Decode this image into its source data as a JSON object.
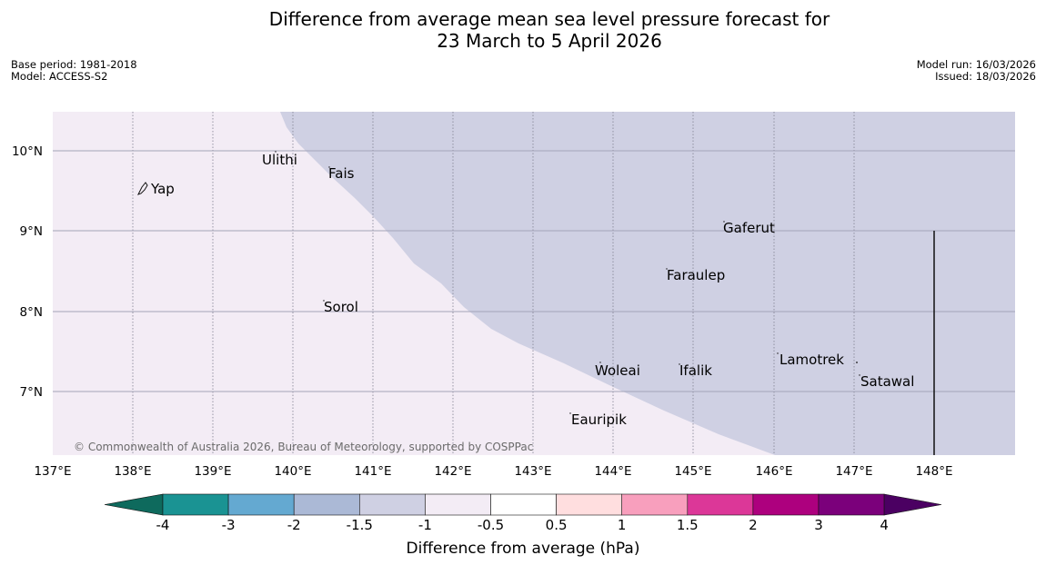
{
  "title": {
    "line1": "Difference from average mean sea level pressure forecast for",
    "line2": "23 March to 5 April 2026"
  },
  "meta": {
    "base_period": "Base period: 1981-2018",
    "model": "Model: ACCESS-S2",
    "model_run": "Model run: 16/03/2026",
    "issued": "Issued: 18/03/2026"
  },
  "map": {
    "lon_labels": [
      "137°E",
      "138°E",
      "139°E",
      "140°E",
      "141°E",
      "142°E",
      "143°E",
      "144°E",
      "145°E",
      "146°E",
      "147°E",
      "148°E"
    ],
    "lat_labels": [
      "10°N",
      "9°N",
      "8°N",
      "7°N"
    ],
    "colors": {
      "fill_low": "#cfd0e3",
      "fill_mid": "#f3ecf5",
      "grid": "#9a9a9a"
    },
    "places": [
      {
        "name": "Yap"
      },
      {
        "name": "Ulithi"
      },
      {
        "name": "Fais"
      },
      {
        "name": "Gaferut"
      },
      {
        "name": "Faraulep"
      },
      {
        "name": "Sorol"
      },
      {
        "name": "Woleai"
      },
      {
        "name": "Ifalik"
      },
      {
        "name": "Lamotrek"
      },
      {
        "name": "Satawal"
      },
      {
        "name": "Eauripik"
      }
    ],
    "copyright": "© Commonwealth of Australia 2026, Bureau of Meteorology, supported by COSPPac"
  },
  "colorbar": {
    "colors": [
      "#0e6a5d",
      "#1a9393",
      "#64a9d1",
      "#abb9d6",
      "#cfd0e3",
      "#f3ecf5",
      "#ffffff",
      "#ffdedf",
      "#f89fbd",
      "#dc3798",
      "#ad007e",
      "#7b007b",
      "#4b0062"
    ],
    "tick_labels": [
      "-4",
      "-3",
      "-2",
      "-1.5",
      "-1",
      "-0.5",
      "0.5",
      "1",
      "1.5",
      "2",
      "3",
      "4"
    ],
    "title": "Difference from average (hPa)"
  }
}
